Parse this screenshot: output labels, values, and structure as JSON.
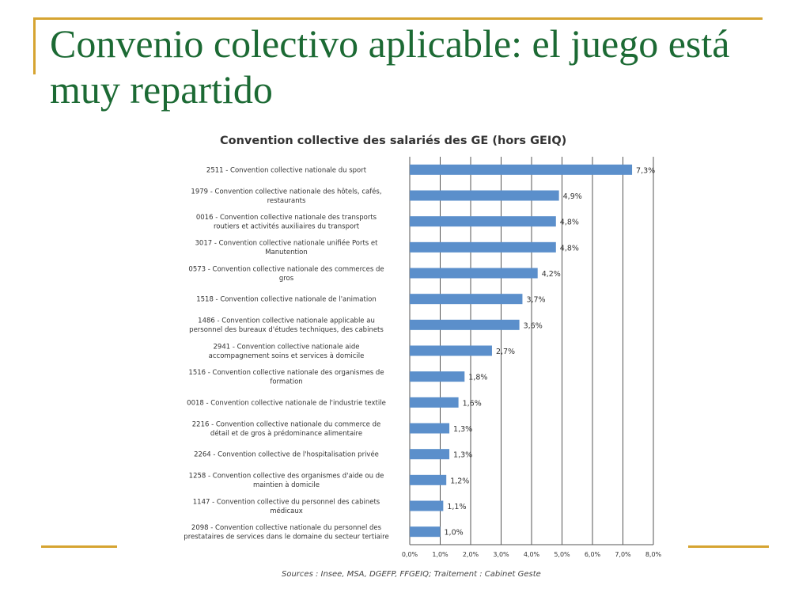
{
  "slide": {
    "title": "Convenio colectivo aplicable: el juego está muy repartido"
  },
  "chart_data": {
    "type": "bar",
    "orientation": "horizontal",
    "title": "Convention collective des salariés des GE (hors GEIQ)",
    "source": "Sources : Insee, MSA, DGEFP, FFGEIQ;  Traitement : Cabinet Geste",
    "categories": [
      [
        "2511 - Convention collective nationale du sport"
      ],
      [
        "1979 - Convention collective nationale des hôtels, cafés,",
        "restaurants"
      ],
      [
        "0016 - Convention collective nationale des transports",
        "routiers et activités auxiliaires du transport"
      ],
      [
        "3017 - Convention collective nationale unifiée Ports et",
        "Manutention"
      ],
      [
        "0573 - Convention collective nationale des commerces de",
        "gros"
      ],
      [
        "1518 - Convention collective nationale de l'animation"
      ],
      [
        "1486 - Convention collective nationale applicable au",
        "personnel des bureaux d'études techniques, des cabinets"
      ],
      [
        "2941 - Convention collective nationale aide",
        "accompagnement soins et services à domicile"
      ],
      [
        "1516 - Convention collective nationale des organismes de",
        "formation"
      ],
      [
        "0018 - Convention collective nationale de l'industrie textile"
      ],
      [
        "2216 - Convention collective nationale du commerce de",
        "détail et de gros à prédominance alimentaire"
      ],
      [
        "2264 - Convention collective de l'hospitalisation privée"
      ],
      [
        "1258 - Convention collective des organismes d'aide ou de",
        "maintien à domicile"
      ],
      [
        "1147 - Convention collective du personnel des cabinets",
        "médicaux"
      ],
      [
        "2098 - Convention collective nationale du personnel des",
        "prestataires de services dans le domaine du secteur tertiaire"
      ]
    ],
    "values": [
      7.3,
      4.9,
      4.8,
      4.8,
      4.2,
      3.7,
      3.6,
      2.7,
      1.8,
      1.6,
      1.3,
      1.3,
      1.2,
      1.1,
      1.0
    ],
    "value_labels": [
      "7,3%",
      "4,9%",
      "4,8%",
      "4,8%",
      "4,2%",
      "3,7%",
      "3,6%",
      "2,7%",
      "1,8%",
      "1,6%",
      "1,3%",
      "1,3%",
      "1,2%",
      "1,1%",
      "1,0%"
    ],
    "xlim": [
      0,
      8
    ],
    "x_ticks": [
      "0,0%",
      "1,0%",
      "2,0%",
      "3,0%",
      "4,0%",
      "5,0%",
      "6,0%",
      "7,0%",
      "8,0%"
    ],
    "grid": "vertical",
    "legend": "none",
    "bar_color": "#5b8fcb"
  }
}
